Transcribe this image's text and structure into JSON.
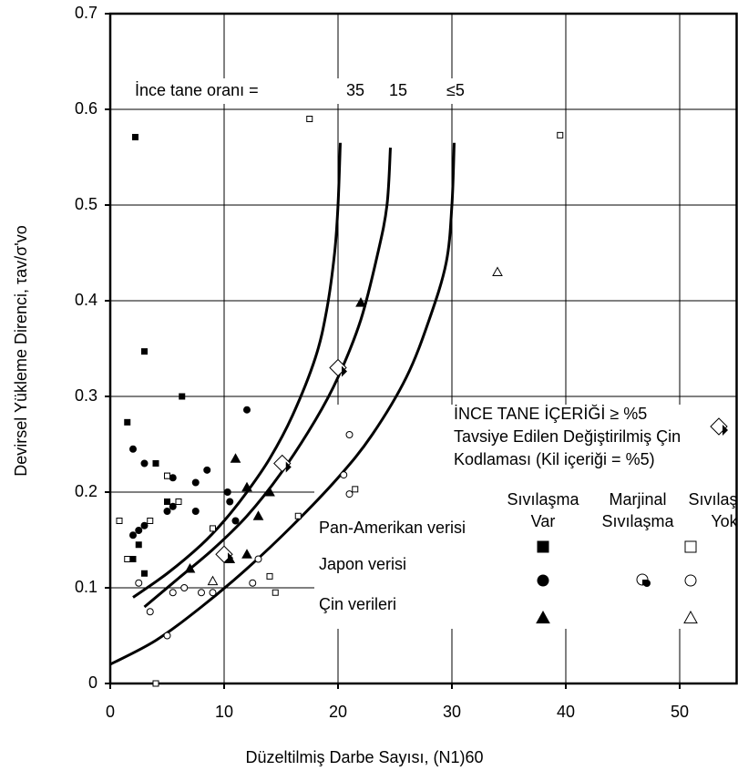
{
  "chart_data": {
    "type": "scatter",
    "xlabel": "Düzeltilmiş Darbe Sayısı, (N1)60",
    "ylabel": "Devirsel Yükleme Direnci, τav/σ'vo",
    "xlim": [
      0,
      55
    ],
    "ylim": [
      0,
      0.7
    ],
    "xticks": [
      0,
      10,
      20,
      30,
      40,
      50
    ],
    "yticks": [
      0,
      0.1,
      0.2,
      0.3,
      0.4,
      0.5,
      0.6,
      0.7
    ],
    "grid": true,
    "annotation": "İnce tane oranı  =",
    "curves": [
      {
        "label": "35",
        "x": [
          2,
          5,
          8,
          10,
          12,
          14,
          16,
          18,
          19,
          19.7,
          20,
          20.2
        ],
        "values": [
          0.09,
          0.115,
          0.145,
          0.17,
          0.2,
          0.235,
          0.28,
          0.34,
          0.39,
          0.45,
          0.5,
          0.565
        ]
      },
      {
        "label": "15",
        "x": [
          3,
          6,
          9,
          12,
          15,
          18,
          20,
          22,
          23.5,
          24.3,
          24.6
        ],
        "values": [
          0.08,
          0.11,
          0.14,
          0.175,
          0.22,
          0.275,
          0.32,
          0.38,
          0.45,
          0.5,
          0.56
        ]
      },
      {
        "label": "≤5",
        "x": [
          0,
          4,
          8,
          12,
          16,
          20,
          23,
          26,
          28,
          29.5,
          30,
          30.2
        ],
        "values": [
          0.02,
          0.045,
          0.08,
          0.12,
          0.165,
          0.215,
          0.26,
          0.32,
          0.38,
          0.44,
          0.5,
          0.565
        ]
      }
    ],
    "series": [
      {
        "marker": "square",
        "filled": true,
        "x": [
          2.2,
          3,
          6.3,
          1.5,
          4,
          5,
          2,
          5,
          3,
          2.5
        ],
        "values": [
          0.571,
          0.347,
          0.3,
          0.273,
          0.23,
          0.217,
          0.13,
          0.19,
          0.115,
          0.145
        ]
      },
      {
        "marker": "circle",
        "filled": true,
        "x": [
          2,
          3,
          5.5,
          7.5,
          8.5,
          12,
          2.5,
          3,
          5,
          5.5,
          7.5,
          10.5,
          11,
          2,
          10.3
        ],
        "values": [
          0.245,
          0.23,
          0.215,
          0.21,
          0.223,
          0.286,
          0.16,
          0.165,
          0.18,
          0.185,
          0.18,
          0.19,
          0.17,
          0.155,
          0.2
        ]
      },
      {
        "marker": "triangle",
        "filled": true,
        "x": [
          22,
          11,
          12,
          12,
          7,
          13,
          14,
          10.5
        ],
        "values": [
          0.398,
          0.235,
          0.205,
          0.135,
          0.12,
          0.175,
          0.2,
          0.13
        ]
      },
      {
        "marker": "square",
        "filled": false,
        "x": [
          17.5,
          39.5,
          0.8,
          3.5,
          5,
          6,
          9,
          14,
          14.5,
          16.5,
          4,
          21.5,
          1.5
        ],
        "values": [
          0.59,
          0.573,
          0.17,
          0.17,
          0.217,
          0.19,
          0.162,
          0.112,
          0.095,
          0.175,
          0,
          0.203,
          0.13
        ]
      },
      {
        "marker": "circle",
        "filled": false,
        "x": [
          2.5,
          3.5,
          5.5,
          8,
          6.5,
          9,
          12.5,
          5,
          20.5,
          21,
          21,
          13
        ],
        "values": [
          0.105,
          0.075,
          0.095,
          0.095,
          0.1,
          0.095,
          0.105,
          0.05,
          0.218,
          0.26,
          0.198,
          0.13
        ]
      },
      {
        "marker": "triangle",
        "filled": false,
        "x": [
          34,
          9
        ],
        "values": [
          0.43,
          0.107
        ]
      },
      {
        "marker": "diamond",
        "filled": false,
        "x": [
          20,
          15.1,
          10
        ],
        "values": [
          0.33,
          0.23,
          0.135
        ]
      }
    ],
    "legend": {
      "heading": [
        "İNCE TANE İÇERİĞİ ≥ %5",
        "Tavsiye Edilen Değiştirilmiş Çin",
        "Kodlaması (Kil içeriği = %5)"
      ],
      "columns": [
        [
          "Sıvılaşma",
          "Var"
        ],
        [
          "Marjinal",
          "Sıvılaşma"
        ],
        [
          "Sıvılaşma",
          "Yok"
        ]
      ],
      "rows": [
        "Pan-Amerikan verisi",
        "Japon verisi",
        "Çin verileri"
      ]
    }
  }
}
